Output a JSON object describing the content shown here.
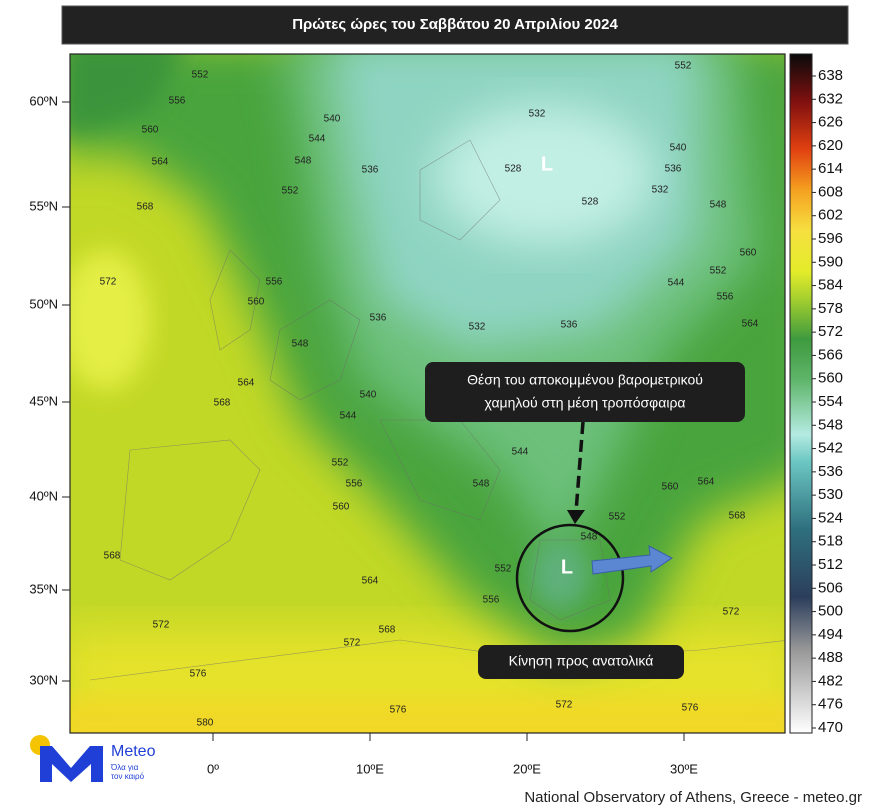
{
  "header": {
    "title": "Πρώτες ώρες του Σαββάτου 20 Απριλίου 2024"
  },
  "map": {
    "lat_labels": [
      "60ºN",
      "55ºN",
      "50ºN",
      "45ºN",
      "40ºN",
      "35ºN",
      "30ºN"
    ],
    "lon_labels": [
      "0º",
      "10ºE",
      "20ºE",
      "30ºE"
    ],
    "low_markers": [
      "L",
      "L"
    ],
    "contour_labels": [
      552,
      556,
      560,
      564,
      568,
      572,
      540,
      544,
      548,
      552,
      536,
      532,
      528,
      528,
      552,
      540,
      536,
      532,
      548,
      560,
      552,
      544,
      556,
      564,
      556,
      560,
      536,
      532,
      536,
      548,
      564,
      568,
      540,
      544,
      544,
      552,
      556,
      548,
      560,
      560,
      564,
      568,
      552,
      548,
      552,
      556,
      568,
      564,
      568,
      572,
      572,
      576,
      572,
      576,
      572,
      576,
      580
    ]
  },
  "colorbar": {
    "ticks": [
      638,
      632,
      626,
      620,
      614,
      608,
      602,
      596,
      590,
      584,
      578,
      572,
      566,
      560,
      554,
      548,
      542,
      536,
      530,
      524,
      518,
      512,
      506,
      500,
      494,
      488,
      482,
      476,
      470
    ]
  },
  "annotations": {
    "callout": [
      "Θέση του αποκομμένου βαρομετρικού",
      "χαμηλού στη μέση τροπόσφαιρα"
    ],
    "movement": "Κίνηση προς ανατολικά"
  },
  "logo": {
    "name": "Meteo",
    "tagline": [
      "Όλα για",
      "τον καιρό"
    ]
  },
  "footer": {
    "credit": "National Observatory of Athens, Greece - meteo.gr"
  }
}
